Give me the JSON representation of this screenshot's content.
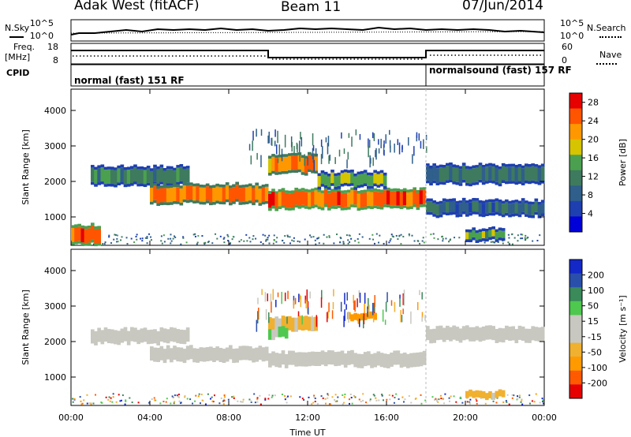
{
  "header": {
    "station": "Adak West (fitACF)",
    "beam": "Beam 11",
    "date": "07/Jun/2014"
  },
  "noise_panel": {
    "left_label": "N.Sky",
    "right_label": "N.Search",
    "left_ticks": [
      "10^5",
      "10^0"
    ],
    "right_ticks": [
      "10^5",
      "10^0"
    ]
  },
  "freq_panel": {
    "left_label_1": "Freq.",
    "left_label_2": "[MHz]",
    "right_label": "Nave",
    "left_ticks": [
      "18",
      "8"
    ],
    "right_ticks": [
      "60",
      "0"
    ]
  },
  "cpid": {
    "label": "CPID",
    "segments": [
      {
        "start_hour": 0,
        "text": "normal (fast) 151 RF"
      },
      {
        "start_hour": 18,
        "text": "normalsound (fast) 157 RF"
      }
    ]
  },
  "colors": {
    "power_scale": [
      "#0000d8",
      "#1e3fb0",
      "#2f5f8a",
      "#3e7a5e",
      "#4ba050",
      "#d6c400",
      "#ff9800",
      "#ff5500",
      "#e60000"
    ],
    "velocity_scale": [
      "#e60000",
      "#ff5a00",
      "#ff9a00",
      "#f0b030",
      "#c8c8c0",
      "#c8c8c0",
      "#4ec84e",
      "#3a8a5a",
      "#2a4faa",
      "#1428c8"
    ]
  },
  "power_colorbar": {
    "title": "Power [dB]",
    "ticks": [
      "28",
      "24",
      "20",
      "16",
      "12",
      "8",
      "4"
    ]
  },
  "velocity_colorbar": {
    "title": "Velocity [m s⁻¹]",
    "ticks": [
      "200",
      "100",
      "50",
      "15",
      "-15",
      "-50",
      "-100",
      "-200"
    ]
  },
  "x_axis": {
    "label": "Time UT",
    "ticks": [
      "00:00",
      "04:00",
      "08:00",
      "12:00",
      "16:00",
      "20:00",
      "00:00"
    ]
  },
  "chart_data": [
    {
      "type": "heatmap",
      "title": "Power",
      "xlabel": "Time UT",
      "ylabel": "Slant Range [km]",
      "xlim": [
        0,
        24
      ],
      "ylim": [
        200,
        4600
      ],
      "yticks": [
        "1000",
        "2000",
        "3000",
        "4000"
      ],
      "colorbar_range_db": [
        0,
        30
      ],
      "echo_bands": [
        {
          "x": [
            0,
            1.5
          ],
          "range_km": [
            300,
            700
          ],
          "power_db": 26
        },
        {
          "x": [
            1,
            6
          ],
          "range_km": [
            1950,
            2350
          ],
          "power_db": 12
        },
        {
          "x": [
            4,
            10
          ],
          "range_km": [
            1450,
            1850
          ],
          "power_db": 24
        },
        {
          "x": [
            10,
            18
          ],
          "range_km": [
            1300,
            1700
          ],
          "power_db": 26
        },
        {
          "x": [
            10,
            12.5
          ],
          "range_km": [
            2300,
            2700
          ],
          "power_db": 22
        },
        {
          "x": [
            12.5,
            16
          ],
          "range_km": [
            1900,
            2200
          ],
          "power_db": 16
        },
        {
          "x": [
            18,
            24
          ],
          "range_km": [
            2000,
            2400
          ],
          "power_db": 10
        },
        {
          "x": [
            18,
            24
          ],
          "range_km": [
            1100,
            1400
          ],
          "power_db": 8
        },
        {
          "x": [
            20,
            22
          ],
          "range_km": [
            400,
            600
          ],
          "power_db": 16
        }
      ]
    },
    {
      "type": "heatmap",
      "title": "Velocity",
      "xlabel": "Time UT",
      "ylabel": "Slant Range [km]",
      "xlim": [
        0,
        24
      ],
      "ylim": [
        200,
        4600
      ],
      "yticks": [
        "1000",
        "2000",
        "3000",
        "4000"
      ],
      "colorbar_range_ms": [
        -200,
        200
      ],
      "echo_bands": [
        {
          "x": [
            1,
            6
          ],
          "range_km": [
            1950,
            2350
          ],
          "velocity_ms": 0
        },
        {
          "x": [
            4,
            10
          ],
          "range_km": [
            1450,
            1850
          ],
          "velocity_ms": 0
        },
        {
          "x": [
            10,
            18
          ],
          "range_km": [
            1300,
            1700
          ],
          "velocity_ms": 0
        },
        {
          "x": [
            10,
            12.5
          ],
          "range_km": [
            2300,
            2700
          ],
          "velocity_ms": -50
        },
        {
          "x": [
            10,
            11
          ],
          "range_km": [
            2100,
            2400
          ],
          "velocity_ms": 50
        },
        {
          "x": [
            14,
            15.5
          ],
          "range_km": [
            2600,
            2800
          ],
          "velocity_ms": -100
        },
        {
          "x": [
            18,
            24
          ],
          "range_km": [
            2000,
            2400
          ],
          "velocity_ms": 0
        },
        {
          "x": [
            20,
            22
          ],
          "range_km": [
            400,
            600
          ],
          "velocity_ms": -50
        }
      ]
    }
  ]
}
